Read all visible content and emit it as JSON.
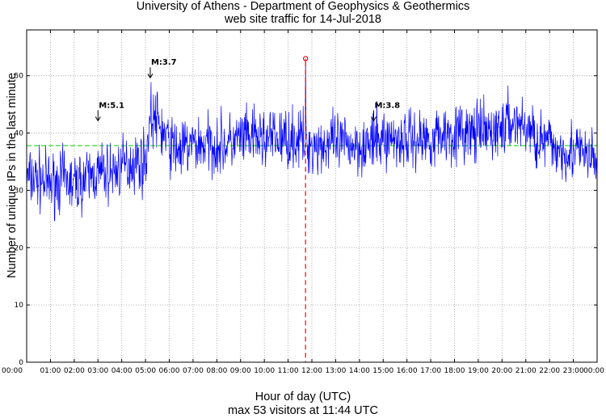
{
  "chart_data": {
    "type": "line",
    "title": "University of Athens - Department of Geophysics & Geothermics",
    "subtitle": "web site traffic for 14-Jul-2018",
    "xlabel": "Hour of day (UTC)",
    "xlabel2": "max 53 visitors at 11:44 UTC",
    "ylabel": "Number of unique IPs in the last minute",
    "xlim": [
      0,
      24
    ],
    "ylim": [
      0,
      58
    ],
    "yticks": [
      0,
      10,
      20,
      30,
      40,
      50
    ],
    "xtick_labels": [
      "00:00",
      "01:00",
      "02:00",
      "03:00",
      "04:00",
      "05:00",
      "06:00",
      "07:00",
      "08:00",
      "09:00",
      "10:00",
      "11:00",
      "12:00",
      "13:00",
      "14:00",
      "15:00",
      "16:00",
      "17:00",
      "18:00",
      "19:00",
      "20:00",
      "21:00",
      "22:00",
      "23:00",
      "00:00"
    ],
    "grid": true,
    "series": [
      {
        "color": "#0000ff",
        "x_hours": [
          0,
          0.5,
          1,
          1.5,
          2,
          2.5,
          3,
          3.5,
          4,
          4.5,
          5,
          5.2,
          5.5,
          6,
          6.5,
          7,
          7.5,
          8,
          8.5,
          9,
          9.5,
          10,
          10.5,
          11,
          11.5,
          12,
          12.5,
          13,
          13.5,
          14,
          14.5,
          15,
          15.5,
          16,
          16.5,
          17,
          17.5,
          18,
          18.5,
          19,
          19.5,
          20,
          20.5,
          21,
          21.5,
          22,
          22.5,
          23,
          23.5,
          24
        ],
        "values": [
          32,
          32,
          31,
          32,
          31,
          32,
          33,
          33,
          34,
          35,
          35,
          43,
          42,
          38,
          37,
          38,
          38,
          38,
          38,
          39,
          39,
          39,
          39,
          39,
          39,
          38,
          38,
          38,
          38,
          38,
          38,
          39,
          39,
          39,
          39,
          39,
          40,
          40,
          40,
          40,
          40,
          41,
          42,
          41,
          39,
          38,
          37,
          37,
          36,
          35
        ]
      }
    ],
    "average_line": {
      "value": 37.8,
      "color": "#00cc00"
    },
    "max_marker": {
      "x_hours": 11.733,
      "value": 53,
      "color": "#ff0000"
    },
    "annotations": [
      {
        "label": "M:5.1",
        "x_hours": 3.0,
        "y": 42
      },
      {
        "label": "M:3.7",
        "x_hours": 5.2,
        "y": 49.5
      },
      {
        "label": "M:3.8",
        "x_hours": 14.6,
        "y": 42
      }
    ]
  }
}
